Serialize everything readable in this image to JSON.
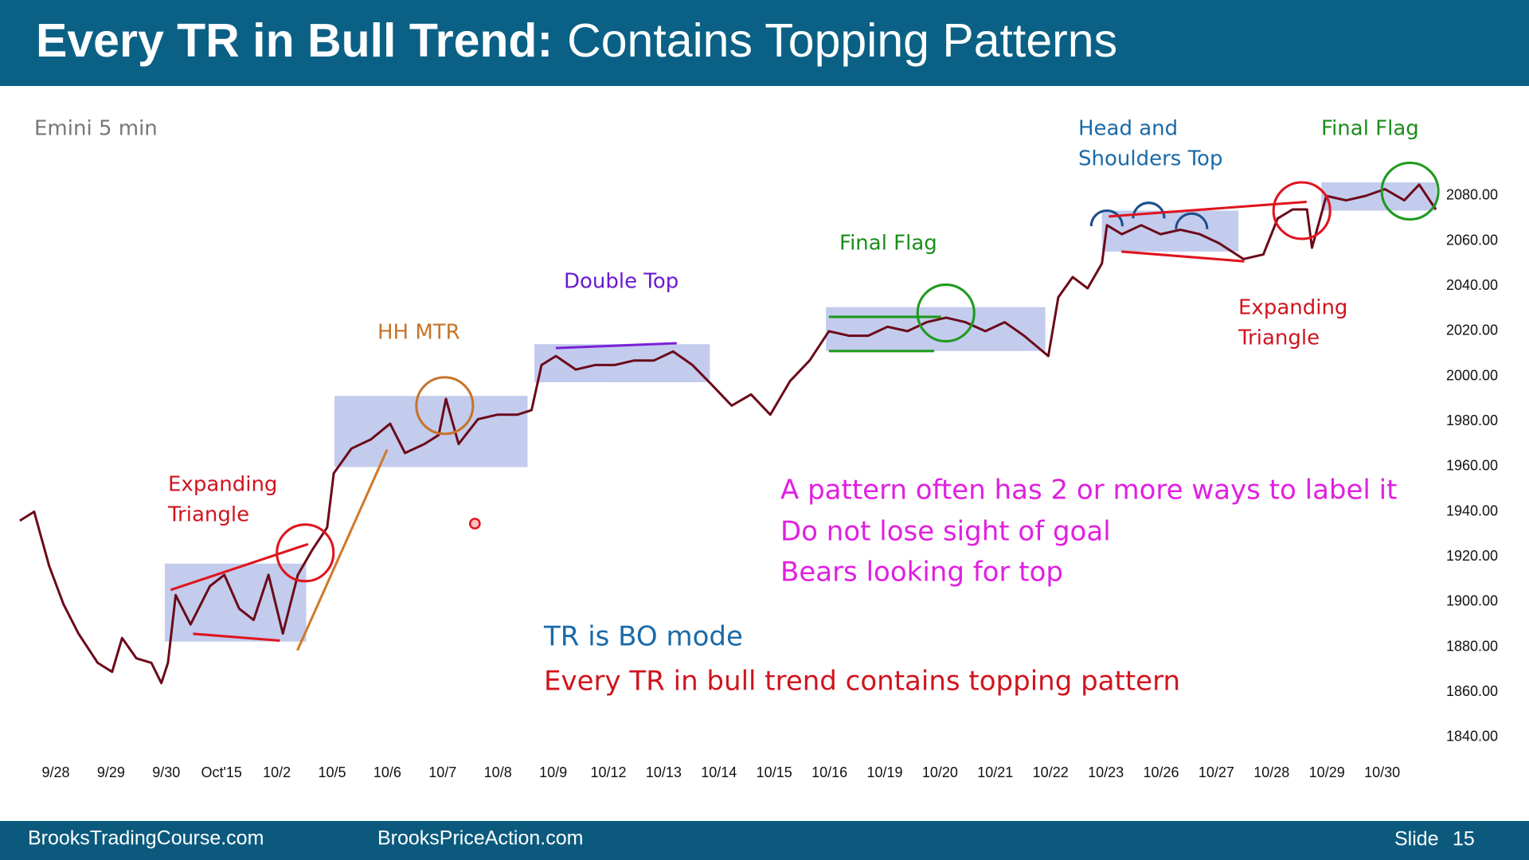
{
  "header": {
    "title_bold": "Every TR in Bull Trend:",
    "title_rest": "Contains Topping Patterns"
  },
  "chart_data": {
    "type": "line",
    "subtitle": "Emini 5 min",
    "color": "#6b0a1a",
    "x": [
      -0.65,
      -0.39,
      -0.12,
      0.14,
      0.41,
      0.76,
      1.02,
      1.2,
      1.46,
      1.73,
      1.91,
      2.03,
      2.17,
      2.44,
      2.79,
      3.05,
      3.32,
      3.58,
      3.85,
      4.11,
      4.38,
      4.64,
      4.91,
      5.03,
      5.35,
      5.7,
      6.05,
      6.32,
      6.67,
      6.93,
      7.06,
      7.29,
      7.64,
      7.99,
      8.35,
      8.61,
      8.79,
      9.05,
      9.41,
      9.76,
      10.11,
      10.46,
      10.82,
      11.17,
      11.52,
      11.88,
      12.23,
      12.58,
      12.93,
      13.29,
      13.64,
      13.99,
      14.35,
      14.7,
      15.05,
      15.41,
      15.76,
      16.11,
      16.46,
      16.82,
      17.17,
      17.52,
      17.96,
      18.14,
      18.4,
      18.67,
      18.93,
      19.02,
      19.29,
      19.64,
      19.99,
      20.35,
      20.7,
      21.05,
      21.49,
      21.85,
      22.11,
      22.38,
      22.64,
      22.73,
      22.99,
      23.35,
      23.7,
      24.05,
      24.4,
      24.67,
      24.97
    ],
    "values": [
      1936,
      1940,
      1916,
      1899,
      1886,
      1873,
      1869,
      1884,
      1875,
      1873,
      1864,
      1873,
      1903,
      1890,
      1907,
      1912,
      1897,
      1892,
      1912,
      1886,
      1912,
      1923,
      1933,
      1957,
      1968,
      1972,
      1979,
      1966,
      1970,
      1974,
      1990,
      1970,
      1981,
      1983,
      1983,
      1985,
      2005,
      2009,
      2003,
      2005,
      2005,
      2007,
      2007,
      2011,
      2005,
      1996,
      1987,
      1992,
      1983,
      1998,
      2007,
      2020,
      2018,
      2018,
      2022,
      2020,
      2024,
      2026,
      2024,
      2020,
      2024,
      2018,
      2009,
      2035,
      2044,
      2039,
      2050,
      2067,
      2063,
      2067,
      2063,
      2065,
      2063,
      2059,
      2052,
      2054,
      2070,
      2074,
      2074,
      2057,
      2080,
      2078,
      2080,
      2083,
      2078,
      2085,
      2074
    ],
    "xlim": [
      -1,
      25.5
    ],
    "xticks": [
      {
        "value": 0,
        "label": "9/28"
      },
      {
        "value": 1,
        "label": "9/29"
      },
      {
        "value": 2,
        "label": "9/30"
      },
      {
        "value": 3,
        "label": "Oct'15"
      },
      {
        "value": 4,
        "label": "10/2"
      },
      {
        "value": 5,
        "label": "10/5"
      },
      {
        "value": 6,
        "label": "10/6"
      },
      {
        "value": 7,
        "label": "10/7"
      },
      {
        "value": 8,
        "label": "10/8"
      },
      {
        "value": 9,
        "label": "10/9"
      },
      {
        "value": 10,
        "label": "10/12"
      },
      {
        "value": 11,
        "label": "10/13"
      },
      {
        "value": 12,
        "label": "10/14"
      },
      {
        "value": 13,
        "label": "10/15"
      },
      {
        "value": 14,
        "label": "10/16"
      },
      {
        "value": 15,
        "label": "10/19"
      },
      {
        "value": 16,
        "label": "10/20"
      },
      {
        "value": 17,
        "label": "10/21"
      },
      {
        "value": 18,
        "label": "10/22"
      },
      {
        "value": 19,
        "label": "10/23"
      },
      {
        "value": 20,
        "label": "10/26"
      },
      {
        "value": 21,
        "label": "10/27"
      },
      {
        "value": 22,
        "label": "10/28"
      },
      {
        "value": 23,
        "label": "10/29"
      },
      {
        "value": 24,
        "label": "10/30"
      }
    ],
    "ylim": [
      1830,
      2100
    ],
    "yticks": [
      {
        "value": 1840,
        "label": "1840.00"
      },
      {
        "value": 1860,
        "label": "1860.00"
      },
      {
        "value": 1880,
        "label": "1880.00"
      },
      {
        "value": 1900,
        "label": "1900.00"
      },
      {
        "value": 1920,
        "label": "1920.00"
      },
      {
        "value": 1940,
        "label": "1940.00"
      },
      {
        "value": 1960,
        "label": "1960.00"
      },
      {
        "value": 1980,
        "label": "1980.00"
      },
      {
        "value": 2000,
        "label": "2000.00"
      },
      {
        "value": 2020,
        "label": "2020.00"
      },
      {
        "value": 2040,
        "label": "2040.00"
      },
      {
        "value": 2060,
        "label": "2060.00"
      },
      {
        "value": 2080,
        "label": "2080.00"
      }
    ],
    "annotations": {
      "expanding_triangle_1": [
        "Expanding",
        "Triangle"
      ],
      "hh_mtr": "HH MTR",
      "double_top": "Double Top",
      "final_flag_1": "Final Flag",
      "head_and_shoulders": [
        "Head and",
        "Shoulders Top"
      ],
      "final_flag_2": "Final Flag",
      "expanding_triangle_2": [
        "Expanding",
        "Triangle"
      ],
      "notes": [
        "A pattern often has 2 or more ways to label it",
        "Do not lose sight of goal",
        "Bears looking for top"
      ],
      "tr_bo": "TR is BO mode",
      "every_tr": "Every TR in bull trend contains topping pattern"
    }
  },
  "footer": {
    "left": "BrooksTradingCourse.com",
    "middle": "BrooksPriceAction.com",
    "slide": "Slide",
    "number": 15
  }
}
